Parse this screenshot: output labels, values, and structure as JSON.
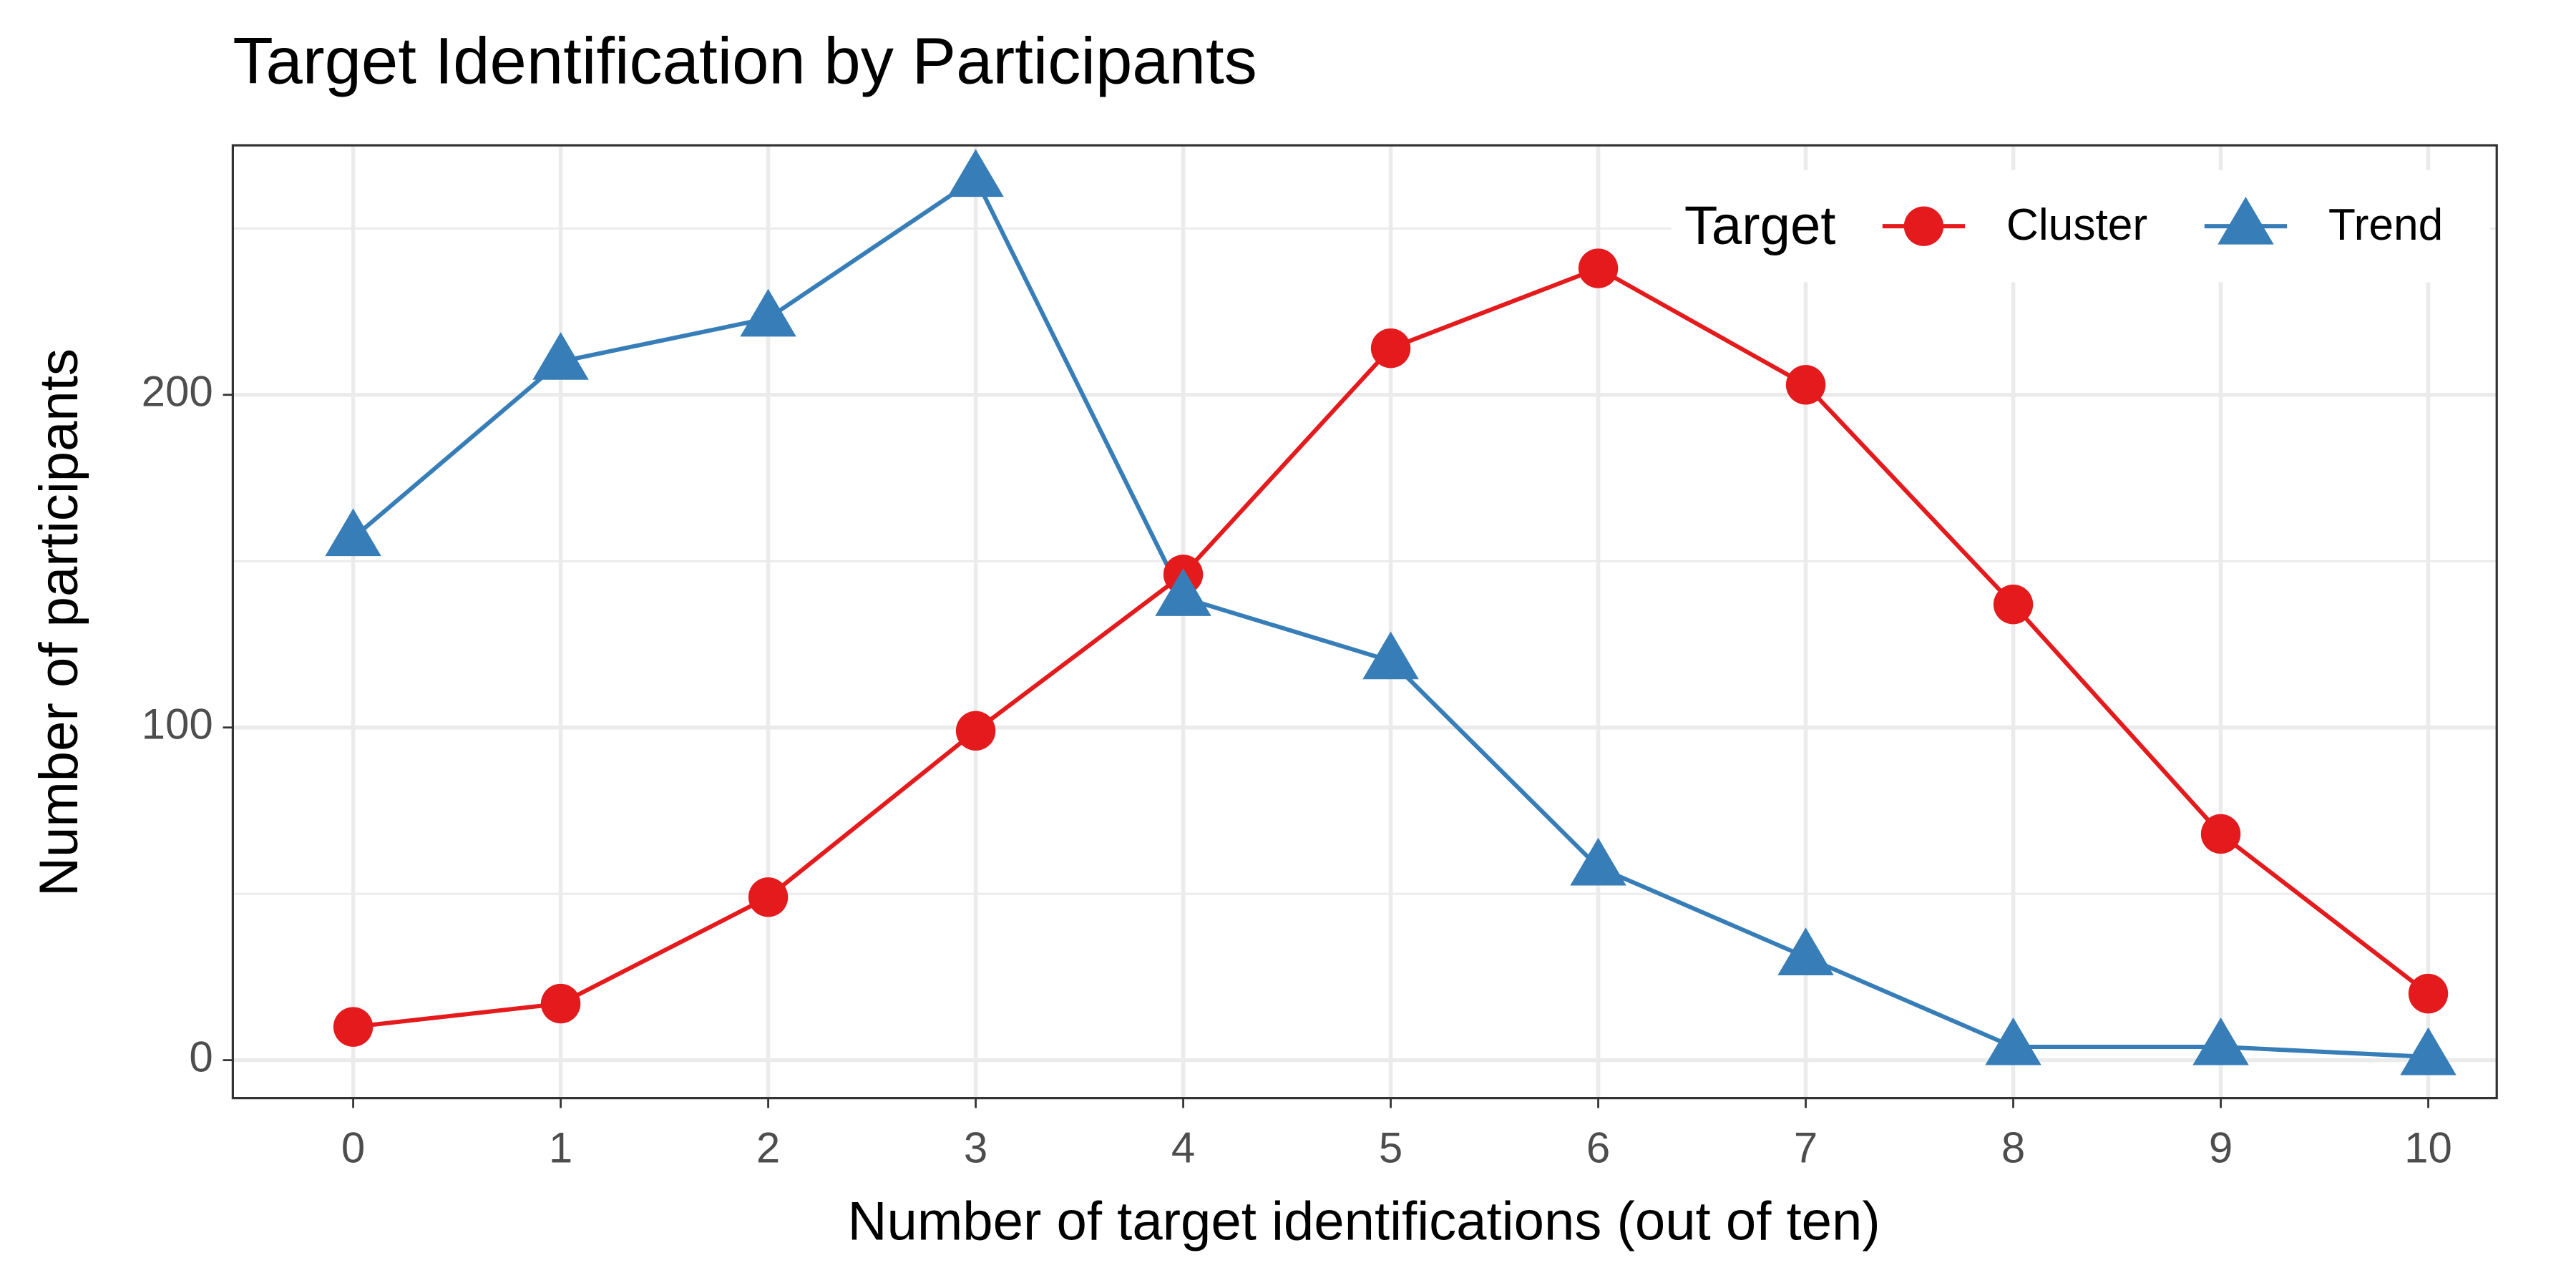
{
  "chart_data": {
    "type": "line",
    "title": "Target Identification by Participants",
    "x_label": "Number of target identifications (out of ten)",
    "y_label": "Number of participants",
    "x": [
      0,
      1,
      2,
      3,
      4,
      5,
      6,
      7,
      8,
      9,
      10
    ],
    "series": [
      {
        "name": "Cluster",
        "color": "#e41a1c",
        "marker": "circle",
        "values": [
          10,
          17,
          49,
          99,
          146,
          214,
          238,
          203,
          137,
          68,
          20
        ]
      },
      {
        "name": "Trend",
        "color": "#377eb8",
        "marker": "triangle",
        "values": [
          157,
          210,
          223,
          265,
          139,
          120,
          58,
          31,
          4,
          4,
          1
        ]
      }
    ],
    "xlim": [
      -0.58,
      10.33
    ],
    "ylim": [
      -11.4,
      275
    ],
    "xticks": [
      0,
      1,
      2,
      3,
      4,
      5,
      6,
      7,
      8,
      9,
      10
    ],
    "yticks": [
      0,
      100,
      200
    ],
    "y_minor_ticks": [
      50,
      150,
      250
    ],
    "grid": true,
    "legend_title": "Target",
    "legend_position": "top-right"
  }
}
